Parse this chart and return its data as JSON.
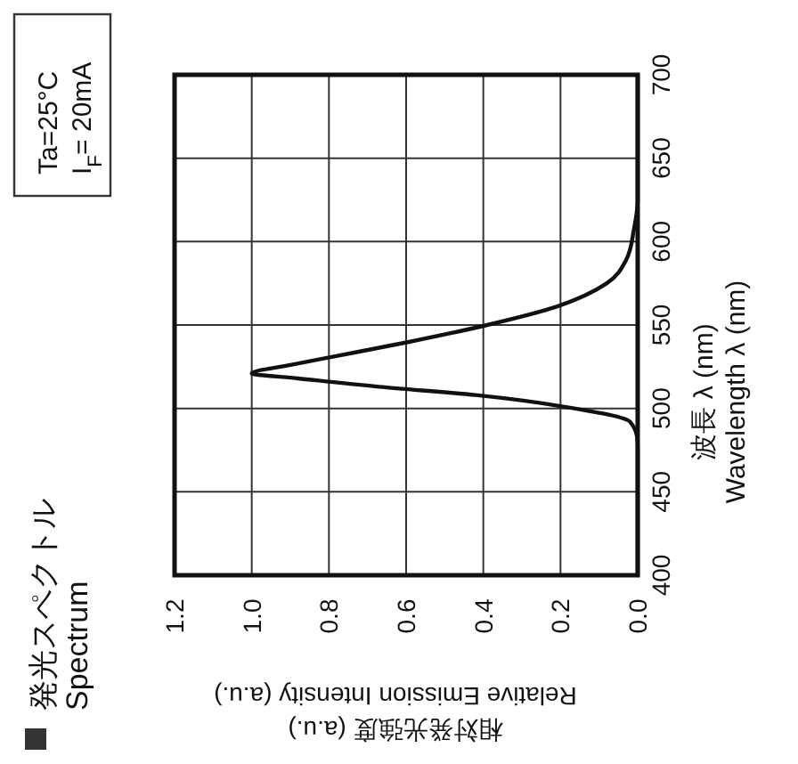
{
  "chart_data": {
    "type": "line",
    "title": "発光スペクトル",
    "subtitle": "Spectrum",
    "xlabel": "相対発光強度 (a.u.)\nRelative Emission Intensity (a.u.)",
    "ylabel": "波長 λ (nm)\nWavelength λ (nm)",
    "annotations": [
      "Ta=25°C",
      "I$_{F}$= 20mA"
    ],
    "x": [
      0,
      0,
      0,
      0.02,
      0.19,
      0.42,
      0.67,
      0.88,
      1.0,
      0.9,
      0.79,
      0.59,
      0.39,
      0.21,
      0.08,
      0.03,
      0.01,
      0,
      0
    ],
    "series": [
      {
        "color": "#111111",
        "values": [
          400,
          470,
          476,
          492,
          501,
          508,
          513,
          518,
          521,
          526,
          531,
          540,
          550,
          561,
          575,
          589,
          607,
          625,
          700
        ]
      }
    ],
    "xlim": [
      1.2,
      0
    ],
    "xticks": [
      {
        "value": 1.2,
        "label": "1.2"
      },
      {
        "value": 1.0,
        "label": "1.0"
      },
      {
        "value": 0.8,
        "label": "0.8"
      },
      {
        "value": 0.6,
        "label": "0.6"
      },
      {
        "value": 0.4,
        "label": "0.4"
      },
      {
        "value": 0.2,
        "label": "0.2"
      },
      {
        "value": 0,
        "label": "0.0"
      }
    ],
    "ylim": [
      400,
      700
    ],
    "yticks": [
      400,
      450,
      500,
      550,
      600,
      650,
      700
    ],
    "grid": true,
    "line_style": "solid",
    "marker": "none"
  }
}
